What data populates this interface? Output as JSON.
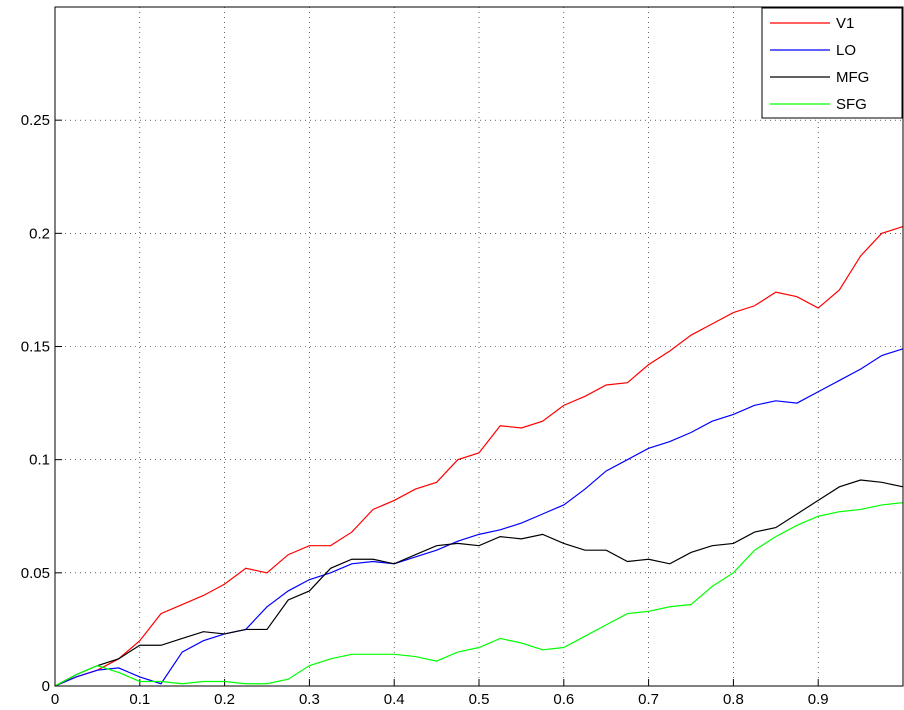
{
  "chart_data": {
    "type": "line",
    "x": [
      0,
      0.025,
      0.05,
      0.075,
      0.1,
      0.125,
      0.15,
      0.175,
      0.2,
      0.225,
      0.25,
      0.275,
      0.3,
      0.325,
      0.35,
      0.375,
      0.4,
      0.425,
      0.45,
      0.475,
      0.5,
      0.525,
      0.55,
      0.575,
      0.6,
      0.625,
      0.65,
      0.675,
      0.7,
      0.725,
      0.75,
      0.775,
      0.8,
      0.825,
      0.85,
      0.875,
      0.9,
      0.925,
      0.95,
      0.975,
      1.0
    ],
    "series": [
      {
        "name": "V1",
        "color": "#ff0000",
        "values": [
          0,
          0.004,
          0.007,
          0.012,
          0.02,
          0.032,
          0.036,
          0.04,
          0.045,
          0.052,
          0.05,
          0.058,
          0.062,
          0.062,
          0.068,
          0.078,
          0.082,
          0.087,
          0.09,
          0.1,
          0.103,
          0.115,
          0.114,
          0.117,
          0.124,
          0.128,
          0.133,
          0.134,
          0.142,
          0.148,
          0.155,
          0.16,
          0.165,
          0.168,
          0.174,
          0.172,
          0.167,
          0.175,
          0.19,
          0.2,
          0.203
        ]
      },
      {
        "name": "LO",
        "color": "#0000ff",
        "values": [
          0,
          0.004,
          0.007,
          0.008,
          0.004,
          0.001,
          0.015,
          0.02,
          0.023,
          0.025,
          0.035,
          0.042,
          0.047,
          0.05,
          0.054,
          0.055,
          0.054,
          0.057,
          0.06,
          0.064,
          0.067,
          0.069,
          0.072,
          0.076,
          0.08,
          0.087,
          0.095,
          0.1,
          0.105,
          0.108,
          0.112,
          0.117,
          0.12,
          0.124,
          0.126,
          0.125,
          0.13,
          0.135,
          0.14,
          0.146,
          0.149
        ]
      },
      {
        "name": "MFG",
        "color": "#000000",
        "values": [
          0,
          0.005,
          0.009,
          0.012,
          0.018,
          0.018,
          0.021,
          0.024,
          0.023,
          0.025,
          0.025,
          0.038,
          0.042,
          0.052,
          0.056,
          0.056,
          0.054,
          0.058,
          0.062,
          0.063,
          0.062,
          0.066,
          0.065,
          0.067,
          0.063,
          0.06,
          0.06,
          0.055,
          0.056,
          0.054,
          0.059,
          0.062,
          0.063,
          0.068,
          0.07,
          0.076,
          0.082,
          0.088,
          0.091,
          0.09,
          0.088
        ]
      },
      {
        "name": "SFG",
        "color": "#00ff00",
        "values": [
          0,
          0.005,
          0.009,
          0.006,
          0.002,
          0.002,
          0.001,
          0.002,
          0.002,
          0.001,
          0.001,
          0.003,
          0.009,
          0.012,
          0.014,
          0.014,
          0.014,
          0.013,
          0.011,
          0.015,
          0.017,
          0.021,
          0.019,
          0.016,
          0.017,
          0.022,
          0.027,
          0.032,
          0.033,
          0.035,
          0.036,
          0.044,
          0.05,
          0.06,
          0.066,
          0.071,
          0.075,
          0.077,
          0.078,
          0.08,
          0.081
        ]
      }
    ],
    "xlim": [
      0,
      1
    ],
    "xticks": [
      0,
      0.1,
      0.2,
      0.3,
      0.4,
      0.5,
      0.6,
      0.7,
      0.8,
      0.9
    ],
    "ylim": [
      0,
      0.3
    ],
    "yticks": [
      0,
      0.05,
      0.1,
      0.15,
      0.2,
      0.25
    ],
    "grid": true,
    "legend": "top-right"
  }
}
